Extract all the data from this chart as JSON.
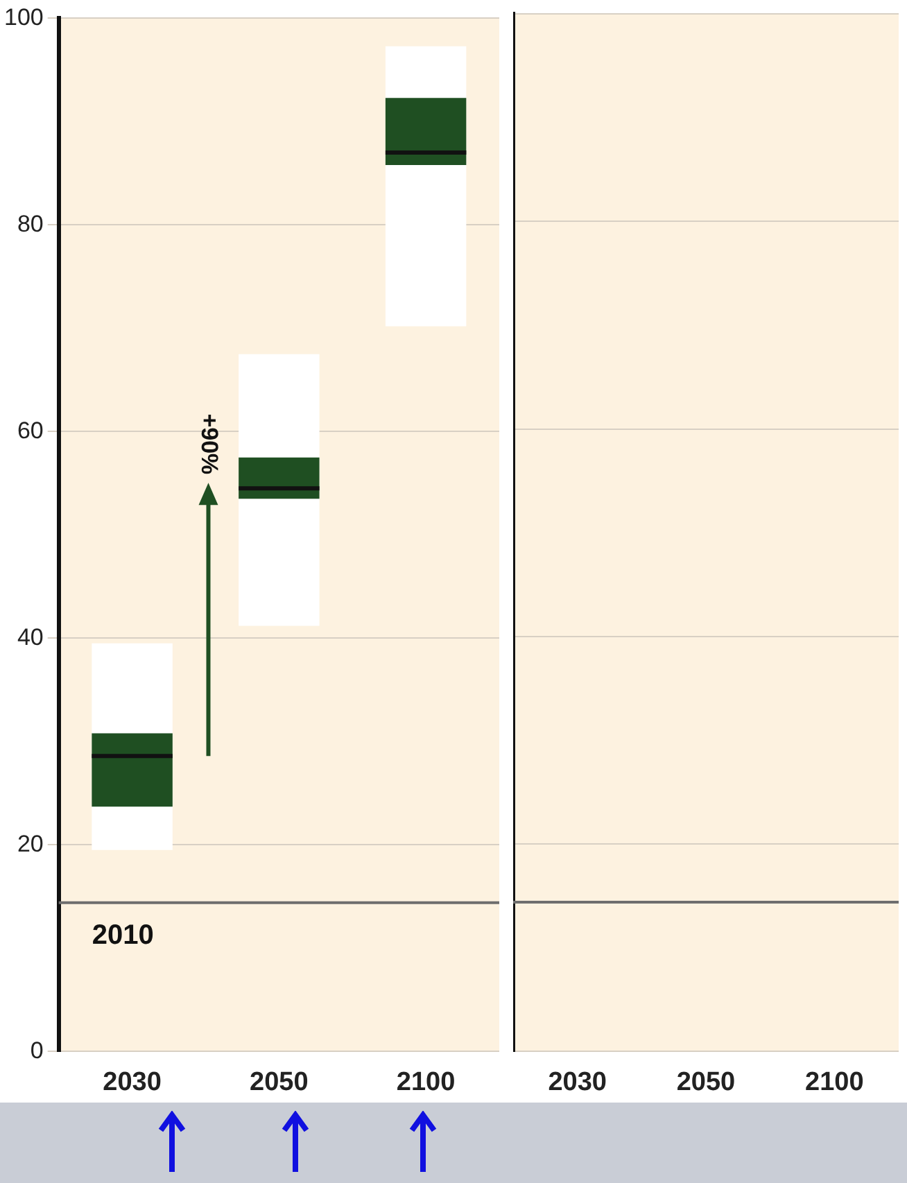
{
  "chart_data": [
    {
      "type": "box",
      "categories": [
        "2030",
        "2050",
        "2100"
      ],
      "boxes": [
        {
          "low": 19.5,
          "q1": 23.7,
          "median": 28.6,
          "q3": 30.8,
          "high": 39.5
        },
        {
          "low": 41.2,
          "q1": 53.5,
          "median": 54.5,
          "q3": 57.5,
          "high": 67.5
        },
        {
          "low": 70.2,
          "q1": 85.8,
          "median": 87,
          "q3": 92.3,
          "high": 97.3
        }
      ],
      "color": "#1f4f22",
      "ylim": [
        0,
        100
      ],
      "yticks": [
        0,
        20,
        40,
        60,
        80,
        100
      ],
      "grid": "y",
      "legend": false,
      "ref_lines": [
        {
          "axis": "y",
          "value": 14.4,
          "color": "#6e6e6e"
        }
      ],
      "annotations": [
        "+90%",
        {
          "text": "2010",
          "y": 14.4
        }
      ]
    },
    {
      "type": "box",
      "categories": [
        "2030",
        "2050",
        "2100"
      ],
      "boxes": [
        null,
        null,
        null
      ],
      "ylim": [
        0,
        100
      ],
      "yticks": [
        0,
        20,
        40,
        60,
        80,
        100
      ],
      "grid": "y",
      "legend": false,
      "tick_labels": "x",
      "ref_lines": [
        {
          "axis": "y",
          "value": 14.4,
          "color": "#6e6e6e"
        }
      ]
    }
  ]
}
